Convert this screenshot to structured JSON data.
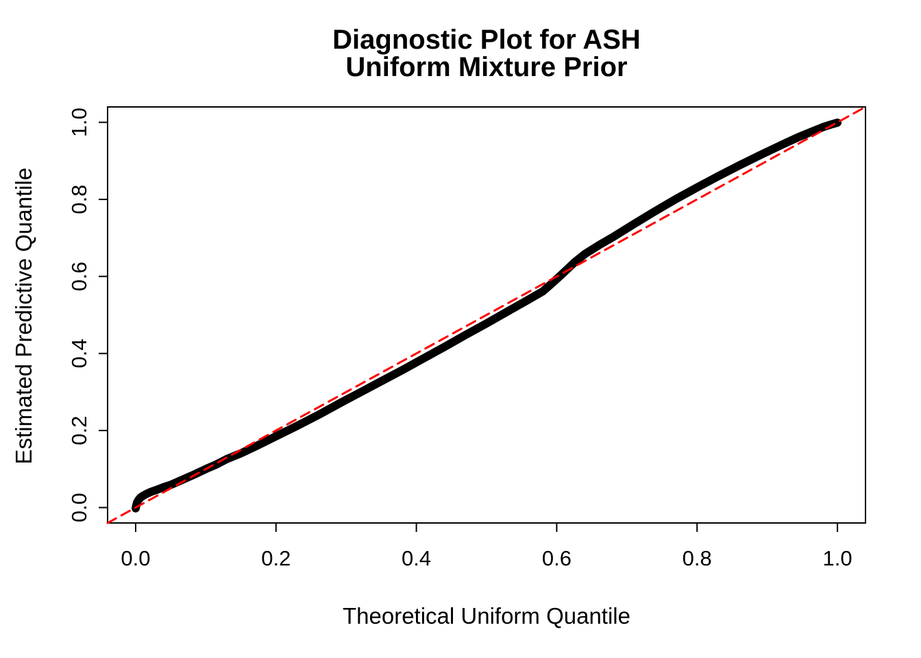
{
  "page": {
    "background": "#FFFFFF",
    "foreground": "#000000"
  },
  "chart_data": {
    "type": "line",
    "title_lines": [
      "Diagnostic Plot for ASH",
      "Uniform Mixture Prior"
    ],
    "xlabel": "Theoretical Uniform Quantile",
    "ylabel": "Estimated Predictive Quantile",
    "xlim": [
      -0.04,
      1.04
    ],
    "ylim": [
      -0.04,
      1.04
    ],
    "grid": false,
    "legend": null,
    "x_ticks": [
      {
        "v": 0.0,
        "label": "0.0"
      },
      {
        "v": 0.2,
        "label": "0.2"
      },
      {
        "v": 0.4,
        "label": "0.4"
      },
      {
        "v": 0.6,
        "label": "0.6"
      },
      {
        "v": 0.8,
        "label": "0.8"
      },
      {
        "v": 1.0,
        "label": "1.0"
      }
    ],
    "y_ticks": [
      {
        "v": 0.0,
        "label": "0.0"
      },
      {
        "v": 0.2,
        "label": "0.2"
      },
      {
        "v": 0.4,
        "label": "0.4"
      },
      {
        "v": 0.6,
        "label": "0.6"
      },
      {
        "v": 0.8,
        "label": "0.8"
      },
      {
        "v": 1.0,
        "label": "1.0"
      }
    ],
    "series": [
      {
        "name": "estimated-vs-theoretical-quantile-curve",
        "style": "solid",
        "color": "#000000",
        "stroke_width": 12,
        "dash": null,
        "points": [
          [
            0.0,
            -0.002
          ],
          [
            0.001,
            0.006
          ],
          [
            0.002,
            0.013
          ],
          [
            0.004,
            0.02
          ],
          [
            0.007,
            0.026
          ],
          [
            0.01,
            0.03
          ],
          [
            0.015,
            0.035
          ],
          [
            0.022,
            0.041
          ],
          [
            0.03,
            0.046
          ],
          [
            0.04,
            0.053
          ],
          [
            0.05,
            0.059
          ],
          [
            0.065,
            0.071
          ],
          [
            0.08,
            0.083
          ],
          [
            0.1,
            0.1
          ],
          [
            0.115,
            0.112
          ],
          [
            0.13,
            0.126
          ],
          [
            0.15,
            0.141
          ],
          [
            0.17,
            0.158
          ],
          [
            0.2,
            0.185
          ],
          [
            0.23,
            0.212
          ],
          [
            0.26,
            0.24
          ],
          [
            0.29,
            0.27
          ],
          [
            0.32,
            0.299
          ],
          [
            0.35,
            0.328
          ],
          [
            0.38,
            0.357
          ],
          [
            0.41,
            0.387
          ],
          [
            0.44,
            0.417
          ],
          [
            0.47,
            0.448
          ],
          [
            0.5,
            0.478
          ],
          [
            0.53,
            0.509
          ],
          [
            0.56,
            0.54
          ],
          [
            0.58,
            0.561
          ],
          [
            0.595,
            0.585
          ],
          [
            0.61,
            0.61
          ],
          [
            0.625,
            0.636
          ],
          [
            0.64,
            0.658
          ],
          [
            0.66,
            0.681
          ],
          [
            0.68,
            0.702
          ],
          [
            0.71,
            0.736
          ],
          [
            0.74,
            0.769
          ],
          [
            0.77,
            0.801
          ],
          [
            0.8,
            0.831
          ],
          [
            0.83,
            0.86
          ],
          [
            0.86,
            0.888
          ],
          [
            0.89,
            0.915
          ],
          [
            0.92,
            0.941
          ],
          [
            0.945,
            0.962
          ],
          [
            0.965,
            0.977
          ],
          [
            0.98,
            0.988
          ],
          [
            0.99,
            0.994
          ],
          [
            1.0,
            0.999
          ]
        ]
      },
      {
        "name": "identity-reference-line",
        "style": "dashed",
        "color": "#FF0000",
        "stroke_width": 3,
        "dash": "14 9",
        "points": [
          [
            -0.04,
            -0.04
          ],
          [
            1.04,
            1.04
          ]
        ]
      }
    ]
  }
}
